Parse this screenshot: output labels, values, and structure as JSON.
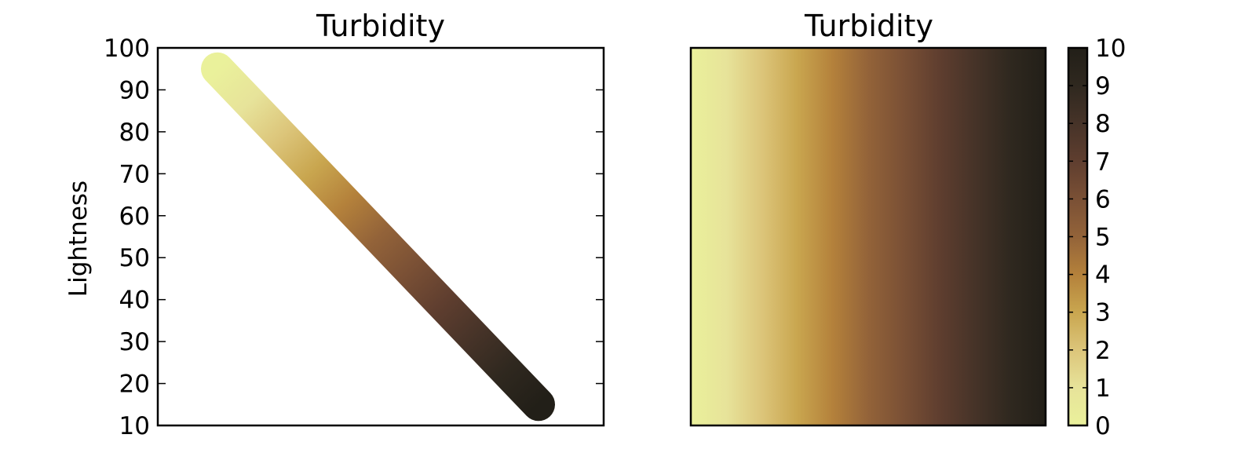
{
  "chart_data": [
    {
      "type": "line",
      "title": "Turbidity",
      "xlabel": "",
      "ylabel": "Lightness",
      "ylim": [
        10,
        100
      ],
      "yticks": [
        "10",
        "20",
        "30",
        "40",
        "50",
        "60",
        "70",
        "80",
        "90",
        "100"
      ],
      "xticks_visible": false,
      "grid": false,
      "series": [
        {
          "x": [
            0,
            1
          ],
          "y": [
            95,
            15
          ]
        }
      ],
      "colormap_stops": [
        "#eaf19b",
        "#e7e39a",
        "#dcc57a",
        "#c9a64f",
        "#b4813b",
        "#936339",
        "#7a5035",
        "#5f3e2f",
        "#463328",
        "#2f281f",
        "#221f18"
      ]
    },
    {
      "type": "heatmap",
      "title": "Turbidity",
      "xlabel": "",
      "ylabel": "",
      "colorbar": {
        "range": [
          0,
          10
        ],
        "ticks": [
          "0",
          "1",
          "2",
          "3",
          "4",
          "5",
          "6",
          "7",
          "8",
          "9",
          "10"
        ]
      }
    }
  ]
}
